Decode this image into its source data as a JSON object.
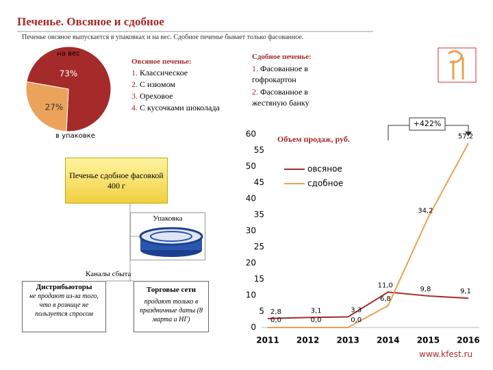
{
  "header": {
    "title": "Печенье. Овсяное и сдобное",
    "subtitle": "Печенье овсяное выпускается в упаковках  и на вес. Сдобное печенье бывает только фасованное."
  },
  "chart_data": [
    {
      "type": "pie",
      "categories": [
        "на вес",
        "в упаковке"
      ],
      "values": [
        73,
        27
      ],
      "value_labels": [
        "73%",
        "27%"
      ],
      "colors": [
        "#a52a2a",
        "#eba35c"
      ]
    },
    {
      "type": "line",
      "title": "Объем продаж, руб.",
      "annotation": "+422%",
      "categories": [
        "2011",
        "2012",
        "2013",
        "2014",
        "2015",
        "2016"
      ],
      "series": [
        {
          "name": "овсяное",
          "color": "#a52a2a",
          "values": [
            2.8,
            3.1,
            3.3,
            11.0,
            9.8,
            9.1
          ],
          "value_labels": [
            "2,8",
            "3,1",
            "3,3",
            "11,0",
            "9,8",
            "9,1"
          ]
        },
        {
          "name": "сдобное",
          "color": "#e8a050",
          "values": [
            0,
            0,
            0,
            6.8,
            34.2,
            57.2
          ],
          "value_labels": [
            "0,0",
            "0,0",
            "0,0",
            "6,8",
            "34,2",
            "57,2"
          ]
        }
      ],
      "ylim": [
        0,
        60
      ],
      "yticks": [
        0,
        5,
        10,
        15,
        20,
        25,
        30,
        35,
        40,
        45,
        50,
        55,
        60
      ]
    }
  ],
  "oat": {
    "title": "Овсяное печенье:",
    "items": [
      {
        "num": "1.",
        "text": "Классическое"
      },
      {
        "num": "2.",
        "text": "С изюмом"
      },
      {
        "num": "3.",
        "text": "Ореховое"
      },
      {
        "num": "4.",
        "text": "С кусочками шоколада"
      }
    ]
  },
  "sweet": {
    "title": "Сдобное печенье:",
    "items": [
      {
        "num": "1.",
        "text": "Фасованное в гофрокартон"
      },
      {
        "num": "2.",
        "text": "Фасованное в жестяную банку"
      }
    ]
  },
  "diagram": {
    "product": "Печенье сдобное фасовкой 400 г",
    "package": "Упаковка",
    "channels": "Каналы сбыта",
    "distributors": {
      "title": "Дистрибьюторы",
      "note": "не продают из-за того, что в рознице не пользуется спросом"
    },
    "retail": {
      "title": "Торговые сети",
      "note": "продают только в праздничные даты (8 марта и НГ)"
    }
  },
  "footer": "www.kfest.ru"
}
